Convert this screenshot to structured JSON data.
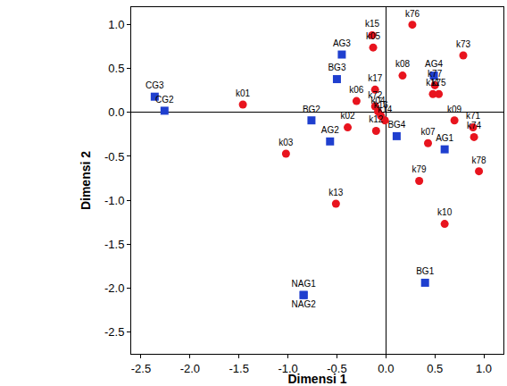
{
  "chart_data": {
    "type": "scatter",
    "xlabel": "Dimensi 1",
    "ylabel": "Dimensi 2",
    "xlim": [
      -2.6,
      1.2
    ],
    "ylim": [
      -2.75,
      1.2
    ],
    "xticks": [
      -2.5,
      {
        "value": -2,
        "label": "-2.0"
      },
      -1.5,
      {
        "value": -1,
        "label": "-1.0"
      },
      -0.5,
      {
        "value": 0,
        "label": "0.0"
      },
      0.5,
      {
        "value": 1,
        "label": "1.0"
      }
    ],
    "yticks": [
      -2.5,
      {
        "value": -2,
        "label": "-2.0"
      },
      -1.5,
      {
        "value": -1,
        "label": "-1.0"
      },
      -0.5,
      {
        "value": 0,
        "label": "0.0"
      },
      0.5,
      {
        "value": 1,
        "label": "1.0"
      }
    ],
    "grid": false,
    "series": [
      {
        "color": "#1f3fcf",
        "marker": "square",
        "labels": [
          "CG3",
          "CG2",
          "AG3",
          "BG3",
          "BG2",
          "AG2",
          "NAG1",
          "NAG2",
          "BG4",
          "AG4",
          "AG1",
          "BG1"
        ],
        "x": [
          -2.36,
          -2.26,
          -0.45,
          -0.5,
          -0.76,
          -0.57,
          -0.84,
          -0.84,
          0.11,
          0.49,
          0.6,
          0.4
        ],
        "y": [
          0.18,
          0.02,
          0.66,
          0.38,
          -0.09,
          -0.33,
          -2.08,
          -2.08,
          -0.27,
          0.42,
          -0.42,
          -1.94
        ]
      },
      {
        "color": "#e8141e",
        "marker": "circle",
        "labels": [
          "k01",
          "k03",
          "k02",
          "k06",
          "k13",
          "k15",
          "k05",
          "k17",
          "k72",
          "k04",
          "k16",
          "k14",
          "k12",
          "k08",
          "k76",
          "k73",
          "k77",
          "k11",
          "k75",
          "k09",
          "k71",
          "k74",
          "k78",
          "k07",
          "k79",
          "k10"
        ],
        "x": [
          -1.46,
          -1.02,
          -0.39,
          -0.3,
          -0.51,
          -0.14,
          -0.13,
          -0.11,
          -0.11,
          -0.08,
          -0.05,
          -0.01,
          -0.1,
          0.17,
          0.27,
          0.79,
          0.5,
          0.48,
          0.54,
          0.7,
          0.89,
          0.9,
          0.95,
          0.43,
          0.34,
          0.6
        ],
        "y": [
          0.09,
          -0.47,
          -0.17,
          0.13,
          -1.04,
          0.88,
          0.74,
          0.26,
          0.07,
          0.01,
          -0.04,
          -0.09,
          -0.21,
          0.42,
          1.0,
          0.65,
          0.31,
          0.21,
          0.21,
          -0.09,
          -0.17,
          -0.28,
          -0.67,
          -0.35,
          -0.78,
          -1.27
        ]
      }
    ]
  }
}
